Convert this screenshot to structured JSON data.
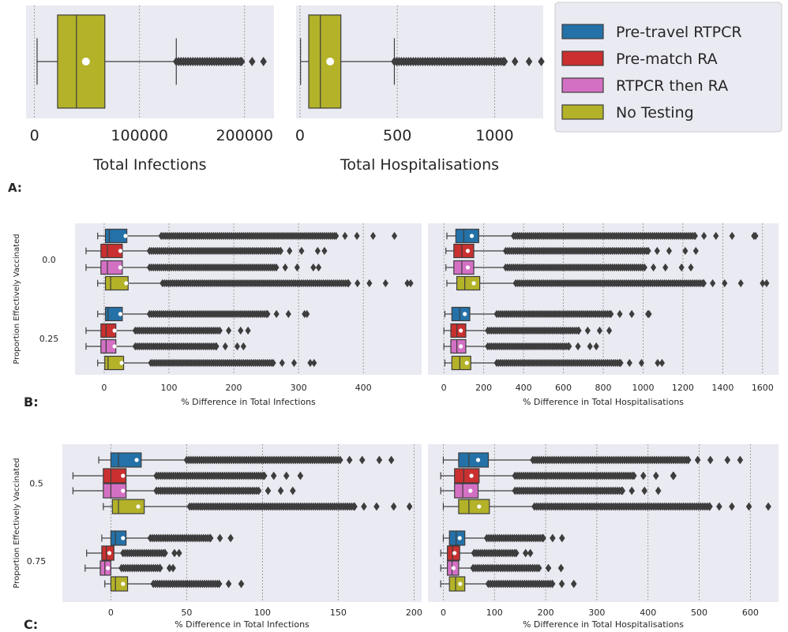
{
  "colors": {
    "Pre-travel RTPCR": "#2471a8",
    "Pre-match RA": "#c9302f",
    "RTPCR then RA": "#d470c4",
    "No Testing": "#b3b229"
  },
  "legend": {
    "entries": [
      "Pre-travel RTPCR",
      "Pre-match RA",
      "RTPCR then RA",
      "No Testing"
    ]
  },
  "panel_labels": {
    "a": "A:",
    "b": "B:",
    "c": "C:"
  },
  "chart_data": [
    {
      "panel": "A",
      "type": "box",
      "orient": "horizontal",
      "xlabel": "Total Infections",
      "ylabel": "",
      "xlim": [
        -8000,
        228000
      ],
      "ticks": [
        0,
        100000,
        200000
      ],
      "tick_labels": [
        "0",
        "100000",
        "200000"
      ],
      "groups": [
        ""
      ],
      "series": [
        {
          "name": "No Testing",
          "values": [
            {
              "group": "",
              "q1": 22000,
              "median": 40000,
              "q3": 67000,
              "whislo": 2500,
              "whishi": 135000,
              "mean": 49000,
              "flierMin": 135000,
              "flierMax": 218000
            }
          ]
        }
      ]
    },
    {
      "panel": "A",
      "type": "box",
      "orient": "horizontal",
      "xlabel": "Total Hospitalisations",
      "ylabel": "",
      "xlim": [
        -20,
        1250
      ],
      "ticks": [
        0,
        500,
        1000
      ],
      "tick_labels": [
        "0",
        "500",
        "1000"
      ],
      "groups": [
        ""
      ],
      "series": [
        {
          "name": "No Testing",
          "values": [
            {
              "group": "",
              "q1": 45,
              "median": 105,
              "q3": 210,
              "whislo": 3,
              "whishi": 485,
              "mean": 155,
              "flierMin": 485,
              "flierMax": 1240
            }
          ]
        }
      ]
    },
    {
      "panel": "B",
      "type": "box",
      "orient": "horizontal",
      "xlabel": "% Difference in Total Infections",
      "ylabel": "Proportion Effectively Vaccinated",
      "xlim": [
        -45,
        490
      ],
      "ticks": [
        0,
        100,
        200,
        300,
        400
      ],
      "tick_labels": [
        "0",
        "100",
        "200",
        "300",
        "400"
      ],
      "groups": [
        "0.0",
        "0.25"
      ],
      "series": [
        {
          "name": "Pre-travel RTPCR",
          "values": [
            {
              "group": "0.0",
              "q1": 2,
              "median": 8,
              "q3": 35,
              "whislo": -10,
              "whishi": 88,
              "mean": 33,
              "flierMin": 88,
              "flierMax": 448
            },
            {
              "group": "0.25",
              "q1": 2,
              "median": 6,
              "q3": 28,
              "whislo": -10,
              "whishi": 70,
              "mean": 25,
              "flierMin": 70,
              "flierMax": 313
            }
          ]
        },
        {
          "name": "Pre-match RA",
          "values": [
            {
              "group": "0.0",
              "q1": -5,
              "median": 5,
              "q3": 28,
              "whislo": -28,
              "whishi": 70,
              "mean": 25,
              "flierMin": 70,
              "flierMax": 340
            },
            {
              "group": "0.25",
              "q1": -5,
              "median": 3,
              "q3": 18,
              "whislo": -28,
              "whishi": 48,
              "mean": 16,
              "flierMin": 48,
              "flierMax": 222
            }
          ]
        },
        {
          "name": "RTPCR then RA",
          "values": [
            {
              "group": "0.0",
              "q1": -5,
              "median": 5,
              "q3": 28,
              "whislo": -28,
              "whishi": 70,
              "mean": 25,
              "flierMin": 70,
              "flierMax": 331
            },
            {
              "group": "0.25",
              "q1": -5,
              "median": 3,
              "q3": 18,
              "whislo": -28,
              "whishi": 48,
              "mean": 16,
              "flierMin": 48,
              "flierMax": 215
            }
          ]
        },
        {
          "name": "No Testing",
          "values": [
            {
              "group": "0.0",
              "q1": 2,
              "median": 10,
              "q3": 37,
              "whislo": -10,
              "whishi": 90,
              "mean": 34,
              "flierMin": 90,
              "flierMax": 473
            },
            {
              "group": "0.25",
              "q1": 1,
              "median": 6,
              "q3": 30,
              "whislo": -10,
              "whishi": 72,
              "mean": 27,
              "flierMin": 72,
              "flierMax": 324
            }
          ]
        }
      ]
    },
    {
      "panel": "B",
      "type": "box",
      "orient": "horizontal",
      "xlabel": "% Difference in Total Hospitalisations",
      "ylabel": "",
      "xlim": [
        -80,
        1680
      ],
      "ticks": [
        0,
        200,
        400,
        600,
        800,
        1000,
        1200,
        1400,
        1600
      ],
      "tick_labels": [
        "0",
        "200",
        "400",
        "600",
        "800",
        "1000",
        "1200",
        "1400",
        "1600"
      ],
      "groups": [
        "0.0",
        "0.25"
      ],
      "series": [
        {
          "name": "Pre-travel RTPCR",
          "values": [
            {
              "group": "0.0",
              "q1": 60,
              "median": 100,
              "q3": 175,
              "whislo": 15,
              "whishi": 350,
              "mean": 140,
              "flierMin": 350,
              "flierMax": 1565
            },
            {
              "group": "0.25",
              "q1": 40,
              "median": 80,
              "q3": 130,
              "whislo": 5,
              "whishi": 265,
              "mean": 105,
              "flierMin": 265,
              "flierMax": 1030
            }
          ]
        },
        {
          "name": "Pre-match RA",
          "values": [
            {
              "group": "0.0",
              "q1": 50,
              "median": 90,
              "q3": 150,
              "whislo": 10,
              "whishi": 310,
              "mean": 120,
              "flierMin": 310,
              "flierMax": 1265
            },
            {
              "group": "0.25",
              "q1": 35,
              "median": 65,
              "q3": 110,
              "whislo": 0,
              "whishi": 220,
              "mean": 85,
              "flierMin": 220,
              "flierMax": 830
            }
          ]
        },
        {
          "name": "RTPCR then RA",
          "values": [
            {
              "group": "0.0",
              "q1": 50,
              "median": 90,
              "q3": 150,
              "whislo": 10,
              "whishi": 310,
              "mean": 120,
              "flierMin": 310,
              "flierMax": 1240
            },
            {
              "group": "0.25",
              "q1": 35,
              "median": 65,
              "q3": 110,
              "whislo": 0,
              "whishi": 220,
              "mean": 85,
              "flierMin": 220,
              "flierMax": 765
            }
          ]
        },
        {
          "name": "No Testing",
          "values": [
            {
              "group": "0.0",
              "q1": 65,
              "median": 105,
              "q3": 180,
              "whislo": 15,
              "whishi": 360,
              "mean": 150,
              "flierMin": 360,
              "flierMax": 1620
            },
            {
              "group": "0.25",
              "q1": 40,
              "median": 80,
              "q3": 135,
              "whislo": 5,
              "whishi": 265,
              "mean": 115,
              "flierMin": 265,
              "flierMax": 1095
            }
          ]
        }
      ]
    },
    {
      "panel": "C",
      "type": "box",
      "orient": "horizontal",
      "xlabel": "% Difference in Total Infections",
      "ylabel": "Proportion Effectively Vaccinated",
      "xlim": [
        -32,
        205
      ],
      "ticks": [
        0,
        50,
        100,
        150,
        200
      ],
      "tick_labels": [
        "0",
        "50",
        "100",
        "150",
        "200"
      ],
      "groups": [
        "0.5",
        "0.75"
      ],
      "series": [
        {
          "name": "Pre-travel RTPCR",
          "values": [
            {
              "group": "0.5",
              "q1": 0,
              "median": 5,
              "q3": 20,
              "whislo": -8,
              "whishi": 50,
              "mean": 17,
              "flierMin": 50,
              "flierMax": 185
            },
            {
              "group": "0.75",
              "q1": 0,
              "median": 3,
              "q3": 10,
              "whislo": -6,
              "whishi": 26,
              "mean": 8,
              "flierMin": 26,
              "flierMax": 79
            }
          ]
        },
        {
          "name": "Pre-match RA",
          "values": [
            {
              "group": "0.5",
              "q1": -5,
              "median": 0,
              "q3": 10,
              "whislo": -25,
              "whishi": 30,
              "mean": 8,
              "flierMin": 30,
              "flierMax": 125
            },
            {
              "group": "0.75",
              "q1": -6,
              "median": -3,
              "q3": 2,
              "whislo": -16,
              "whishi": 8,
              "mean": -1,
              "flierMin": 8,
              "flierMax": 45
            }
          ]
        },
        {
          "name": "RTPCR then RA",
          "values": [
            {
              "group": "0.5",
              "q1": -5,
              "median": 0,
              "q3": 10,
              "whislo": -25,
              "whishi": 30,
              "mean": 8,
              "flierMin": 30,
              "flierMax": 120
            },
            {
              "group": "0.75",
              "q1": -7,
              "median": -4,
              "q3": 0,
              "whislo": -17,
              "whishi": 7,
              "mean": -2,
              "flierMin": 7,
              "flierMax": 41
            }
          ]
        },
        {
          "name": "No Testing",
          "values": [
            {
              "group": "0.5",
              "q1": 1,
              "median": 5,
              "q3": 22,
              "whislo": -5,
              "whishi": 52,
              "mean": 18,
              "flierMin": 52,
              "flierMax": 197
            },
            {
              "group": "0.75",
              "q1": 0,
              "median": 3,
              "q3": 11,
              "whislo": -4,
              "whishi": 28,
              "mean": 8,
              "flierMin": 28,
              "flierMax": 86
            }
          ]
        }
      ]
    },
    {
      "panel": "C",
      "type": "box",
      "orient": "horizontal",
      "xlabel": "% Difference in Total Hospitalisations",
      "ylabel": "",
      "xlim": [
        -30,
        655
      ],
      "ticks": [
        0,
        100,
        200,
        300,
        400,
        500,
        600
      ],
      "tick_labels": [
        "0",
        "100",
        "200",
        "300",
        "400",
        "500",
        "600"
      ],
      "groups": [
        "0.5",
        "0.75"
      ],
      "series": [
        {
          "name": "Pre-travel RTPCR",
          "values": [
            {
              "group": "0.5",
              "q1": 30,
              "median": 50,
              "q3": 88,
              "whislo": 0,
              "whishi": 175,
              "mean": 68,
              "flierMin": 175,
              "flierMax": 580
            },
            {
              "group": "0.75",
              "q1": 12,
              "median": 25,
              "q3": 42,
              "whislo": 0,
              "whishi": 85,
              "mean": 32,
              "flierMin": 85,
              "flierMax": 232
            }
          ]
        },
        {
          "name": "Pre-match RA",
          "values": [
            {
              "group": "0.5",
              "q1": 22,
              "median": 40,
              "q3": 70,
              "whislo": -5,
              "whishi": 140,
              "mean": 55,
              "flierMin": 140,
              "flierMax": 450
            },
            {
              "group": "0.75",
              "q1": 8,
              "median": 18,
              "q3": 32,
              "whislo": -5,
              "whishi": 60,
              "mean": 22,
              "flierMin": 60,
              "flierMax": 170
            }
          ]
        },
        {
          "name": "RTPCR then RA",
          "values": [
            {
              "group": "0.5",
              "q1": 22,
              "median": 38,
              "q3": 68,
              "whislo": -5,
              "whishi": 140,
              "mean": 53,
              "flierMin": 140,
              "flierMax": 420
            },
            {
              "group": "0.75",
              "q1": 8,
              "median": 17,
              "q3": 30,
              "whislo": -5,
              "whishi": 58,
              "mean": 20,
              "flierMin": 58,
              "flierMax": 230
            }
          ]
        },
        {
          "name": "No Testing",
          "values": [
            {
              "group": "0.5",
              "q1": 30,
              "median": 50,
              "q3": 90,
              "whislo": 0,
              "whishi": 178,
              "mean": 70,
              "flierMin": 178,
              "flierMax": 635
            },
            {
              "group": "0.75",
              "q1": 12,
              "median": 24,
              "q3": 42,
              "whislo": -5,
              "whishi": 88,
              "mean": 33,
              "flierMin": 88,
              "flierMax": 255
            }
          ]
        }
      ]
    }
  ]
}
